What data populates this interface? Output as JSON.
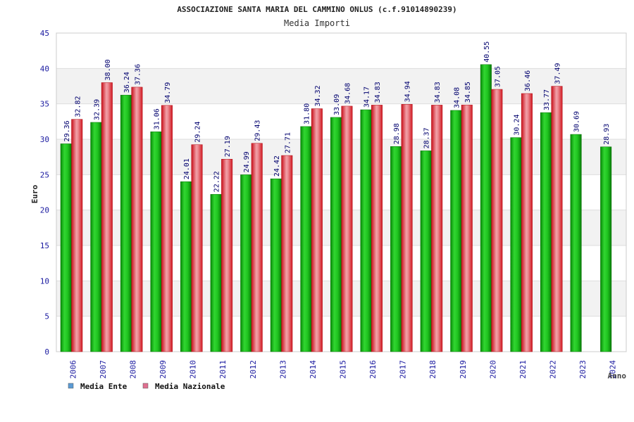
{
  "chart_data": {
    "type": "bar",
    "title": "ASSOCIAZIONE SANTA MARIA DEL CAMMINO ONLUS (c.f.91014890239)",
    "subtitle": "Media Importi",
    "xlabel": "Anno",
    "ylabel": "Euro",
    "ylim": [
      0,
      45
    ],
    "yticks": [
      0,
      5,
      10,
      15,
      20,
      25,
      30,
      35,
      40,
      45
    ],
    "grid": true,
    "legend_position": "bottom-left",
    "categories": [
      "2006",
      "2007",
      "2008",
      "2009",
      "2010",
      "2011",
      "2012",
      "2013",
      "2014",
      "2015",
      "2016",
      "2017",
      "2018",
      "2019",
      "2020",
      "2021",
      "2022",
      "2023",
      "2024"
    ],
    "series": [
      {
        "name": "Media Ente",
        "color": "#0aa80a",
        "legend_color": "#5b9bd5",
        "values": [
          29.36,
          32.39,
          36.24,
          31.06,
          24.01,
          22.22,
          24.99,
          24.42,
          31.8,
          33.09,
          34.17,
          28.98,
          28.37,
          34.08,
          40.55,
          30.24,
          33.77,
          30.69,
          28.93
        ],
        "labels": [
          "29.36",
          "32.39",
          "36.24",
          "31.06",
          "24.01",
          "22.22",
          "24.99",
          "24.42",
          "31.80",
          "33.09",
          "34.17",
          "28.98",
          "28.37",
          "34.08",
          "40.55",
          "30.24",
          "33.77",
          "30.69",
          "28.93"
        ]
      },
      {
        "name": "Media Nazionale",
        "color": "#e0202a",
        "legend_color": "#e07090",
        "values": [
          32.82,
          38.0,
          37.36,
          34.79,
          29.24,
          27.19,
          29.43,
          27.71,
          34.32,
          34.68,
          34.83,
          34.94,
          34.83,
          34.85,
          37.05,
          36.46,
          37.49,
          null,
          null
        ],
        "labels": [
          "32.82",
          "38.00",
          "37.36",
          "34.79",
          "29.24",
          "27.19",
          "29.43",
          "27.71",
          "34.32",
          "34.68",
          "34.83",
          "34.94",
          "34.83",
          "34.85",
          "37.05",
          "36.46",
          "37.49",
          "",
          ""
        ]
      }
    ]
  }
}
